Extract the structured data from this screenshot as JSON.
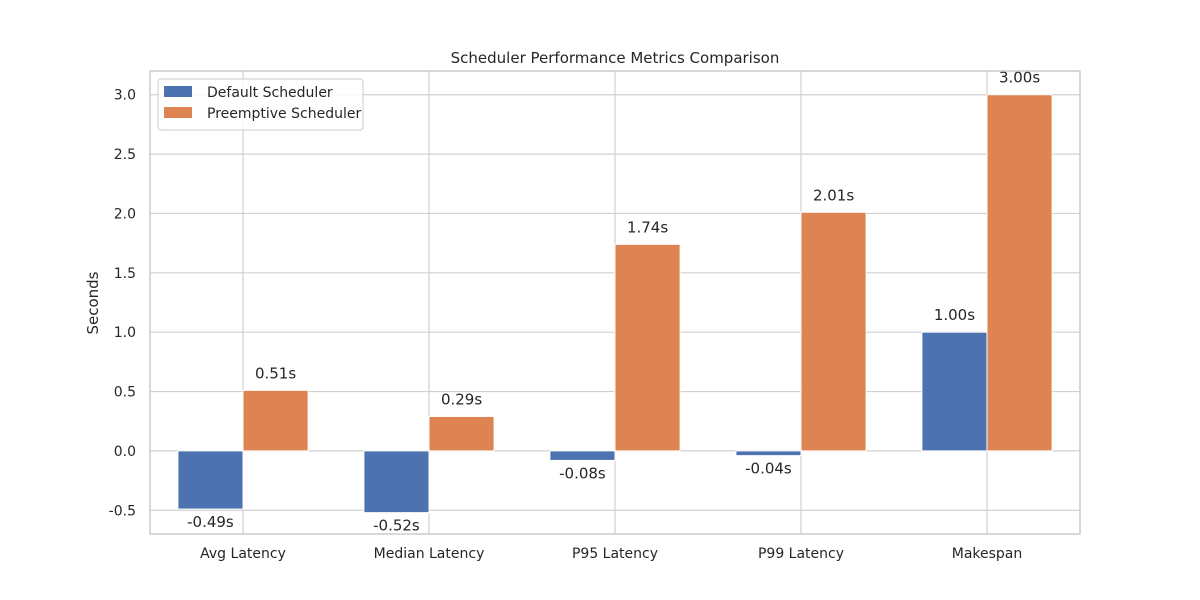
{
  "chart_data": {
    "type": "bar",
    "title": "Scheduler Performance Metrics Comparison",
    "xlabel": "",
    "ylabel": "Seconds",
    "categories": [
      "Avg Latency",
      "Median Latency",
      "P95 Latency",
      "P99 Latency",
      "Makespan"
    ],
    "series": [
      {
        "name": "Default Scheduler",
        "color": "#4c72b0",
        "values": [
          -0.49,
          -0.52,
          -0.08,
          -0.04,
          1.0
        ],
        "labels": [
          "-0.49s",
          "-0.52s",
          "-0.08s",
          "-0.04s",
          "1.00s"
        ]
      },
      {
        "name": "Preemptive Scheduler",
        "color": "#dd8452",
        "values": [
          0.51,
          0.29,
          1.74,
          2.01,
          3.0
        ],
        "labels": [
          "0.51s",
          "0.29s",
          "1.74s",
          "2.01s",
          "3.00s"
        ]
      }
    ],
    "ylim": [
      -0.7,
      3.2
    ],
    "yticks": [
      "-0.5",
      "0.0",
      "0.5",
      "1.0",
      "1.5",
      "2.0",
      "2.5",
      "3.0"
    ],
    "grid": true,
    "legend_position": "top-left"
  }
}
